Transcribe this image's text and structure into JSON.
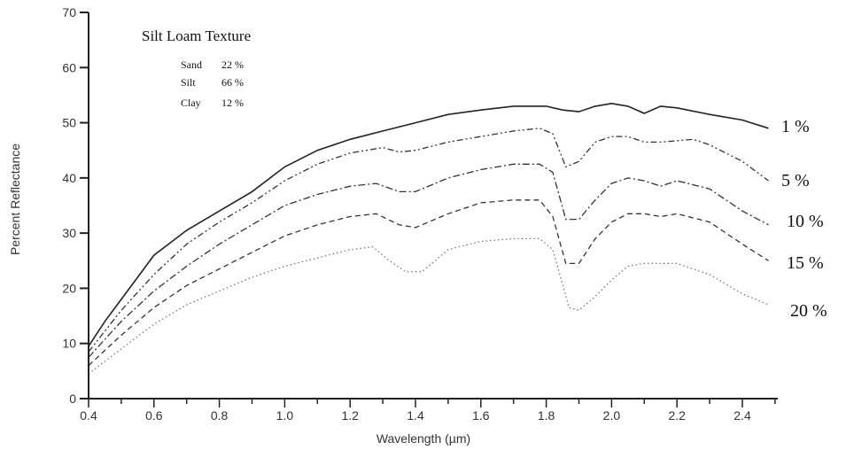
{
  "chart_data": {
    "type": "line",
    "title": "Silt Loam Texture",
    "composition": [
      {
        "label": "Sand",
        "value": "22 %"
      },
      {
        "label": "Silt",
        "value": "66 %"
      },
      {
        "label": "Clay",
        "value": "12 %"
      }
    ],
    "xlabel": "Wavelength (µm)",
    "ylabel": "Percent Reflectance",
    "xlim": [
      0.4,
      2.5
    ],
    "ylim": [
      0,
      70
    ],
    "xticks": [
      "0.4",
      "0.6",
      "0.8",
      "1.0",
      "1.2",
      "1.4",
      "1.6",
      "1.8",
      "2.0",
      "2.2",
      "2.4"
    ],
    "yticks": [
      "0",
      "10",
      "20",
      "30",
      "40",
      "50",
      "60",
      "70"
    ],
    "grid": false,
    "series": [
      {
        "name": "1 %",
        "dash": "solid",
        "color": "#222222",
        "points": [
          [
            0.4,
            9.5
          ],
          [
            0.45,
            14
          ],
          [
            0.5,
            18
          ],
          [
            0.55,
            22
          ],
          [
            0.6,
            26
          ],
          [
            0.7,
            30.5
          ],
          [
            0.8,
            34
          ],
          [
            0.9,
            37.5
          ],
          [
            1.0,
            42
          ],
          [
            1.1,
            45
          ],
          [
            1.2,
            47
          ],
          [
            1.3,
            48.5
          ],
          [
            1.4,
            50
          ],
          [
            1.5,
            51.5
          ],
          [
            1.6,
            52.3
          ],
          [
            1.7,
            53
          ],
          [
            1.8,
            53
          ],
          [
            1.85,
            52.3
          ],
          [
            1.9,
            52
          ],
          [
            1.95,
            53
          ],
          [
            2.0,
            53.5
          ],
          [
            2.05,
            53
          ],
          [
            2.1,
            51.7
          ],
          [
            2.15,
            53
          ],
          [
            2.2,
            52.7
          ],
          [
            2.3,
            51.5
          ],
          [
            2.4,
            50.5
          ],
          [
            2.48,
            49
          ]
        ]
      },
      {
        "name": "5 %",
        "dash": "dashdotdot",
        "color": "#333333",
        "points": [
          [
            0.4,
            8.5
          ],
          [
            0.5,
            16
          ],
          [
            0.6,
            22.5
          ],
          [
            0.7,
            28
          ],
          [
            0.8,
            32
          ],
          [
            0.9,
            35.5
          ],
          [
            1.0,
            39.5
          ],
          [
            1.1,
            42.5
          ],
          [
            1.2,
            44.5
          ],
          [
            1.3,
            45.5
          ],
          [
            1.35,
            44.7
          ],
          [
            1.4,
            45
          ],
          [
            1.5,
            46.5
          ],
          [
            1.6,
            47.5
          ],
          [
            1.7,
            48.5
          ],
          [
            1.78,
            49
          ],
          [
            1.82,
            48
          ],
          [
            1.86,
            42
          ],
          [
            1.9,
            43
          ],
          [
            1.95,
            46.5
          ],
          [
            2.0,
            47.5
          ],
          [
            2.05,
            47.5
          ],
          [
            2.1,
            46.5
          ],
          [
            2.15,
            46.5
          ],
          [
            2.25,
            47
          ],
          [
            2.3,
            46
          ],
          [
            2.4,
            43
          ],
          [
            2.48,
            39.5
          ]
        ]
      },
      {
        "name": "10 %",
        "dash": "dashdot",
        "color": "#333333",
        "points": [
          [
            0.4,
            7.5
          ],
          [
            0.5,
            14
          ],
          [
            0.6,
            19.5
          ],
          [
            0.7,
            24
          ],
          [
            0.8,
            28
          ],
          [
            0.9,
            31.5
          ],
          [
            1.0,
            35
          ],
          [
            1.1,
            37
          ],
          [
            1.2,
            38.5
          ],
          [
            1.28,
            39
          ],
          [
            1.35,
            37.5
          ],
          [
            1.4,
            37.5
          ],
          [
            1.5,
            40
          ],
          [
            1.6,
            41.5
          ],
          [
            1.7,
            42.5
          ],
          [
            1.78,
            42.5
          ],
          [
            1.82,
            41
          ],
          [
            1.86,
            32.5
          ],
          [
            1.9,
            32.5
          ],
          [
            1.95,
            36
          ],
          [
            2.0,
            39
          ],
          [
            2.05,
            40
          ],
          [
            2.1,
            39.5
          ],
          [
            2.15,
            38.5
          ],
          [
            2.2,
            39.5
          ],
          [
            2.3,
            38
          ],
          [
            2.4,
            34
          ],
          [
            2.48,
            31.5
          ]
        ]
      },
      {
        "name": "15 %",
        "dash": "dashed",
        "color": "#333333",
        "points": [
          [
            0.4,
            6
          ],
          [
            0.5,
            11.5
          ],
          [
            0.6,
            16.5
          ],
          [
            0.7,
            20.5
          ],
          [
            0.8,
            23.5
          ],
          [
            0.9,
            26.5
          ],
          [
            1.0,
            29.5
          ],
          [
            1.1,
            31.5
          ],
          [
            1.2,
            33
          ],
          [
            1.28,
            33.5
          ],
          [
            1.35,
            31.5
          ],
          [
            1.4,
            31
          ],
          [
            1.5,
            33.5
          ],
          [
            1.6,
            35.5
          ],
          [
            1.7,
            36
          ],
          [
            1.78,
            36
          ],
          [
            1.82,
            33
          ],
          [
            1.86,
            24.5
          ],
          [
            1.9,
            24.5
          ],
          [
            1.95,
            29
          ],
          [
            2.0,
            32
          ],
          [
            2.05,
            33.5
          ],
          [
            2.1,
            33.5
          ],
          [
            2.15,
            33
          ],
          [
            2.2,
            33.5
          ],
          [
            2.3,
            32
          ],
          [
            2.4,
            28
          ],
          [
            2.48,
            25
          ]
        ]
      },
      {
        "name": "20 %",
        "dash": "dotted",
        "color": "#777777",
        "points": [
          [
            0.4,
            4.5
          ],
          [
            0.5,
            9
          ],
          [
            0.6,
            13.5
          ],
          [
            0.7,
            17
          ],
          [
            0.8,
            19.5
          ],
          [
            0.9,
            22
          ],
          [
            1.0,
            24
          ],
          [
            1.1,
            25.5
          ],
          [
            1.2,
            27
          ],
          [
            1.27,
            27.5
          ],
          [
            1.32,
            25
          ],
          [
            1.37,
            23
          ],
          [
            1.42,
            23
          ],
          [
            1.5,
            27
          ],
          [
            1.6,
            28.5
          ],
          [
            1.7,
            29
          ],
          [
            1.78,
            29
          ],
          [
            1.82,
            27
          ],
          [
            1.87,
            16.5
          ],
          [
            1.9,
            16
          ],
          [
            1.95,
            18.5
          ],
          [
            2.0,
            21.5
          ],
          [
            2.05,
            24
          ],
          [
            2.1,
            24.5
          ],
          [
            2.15,
            24.5
          ],
          [
            2.2,
            24.5
          ],
          [
            2.3,
            22.5
          ],
          [
            2.4,
            19
          ],
          [
            2.48,
            17
          ]
        ]
      }
    ]
  }
}
